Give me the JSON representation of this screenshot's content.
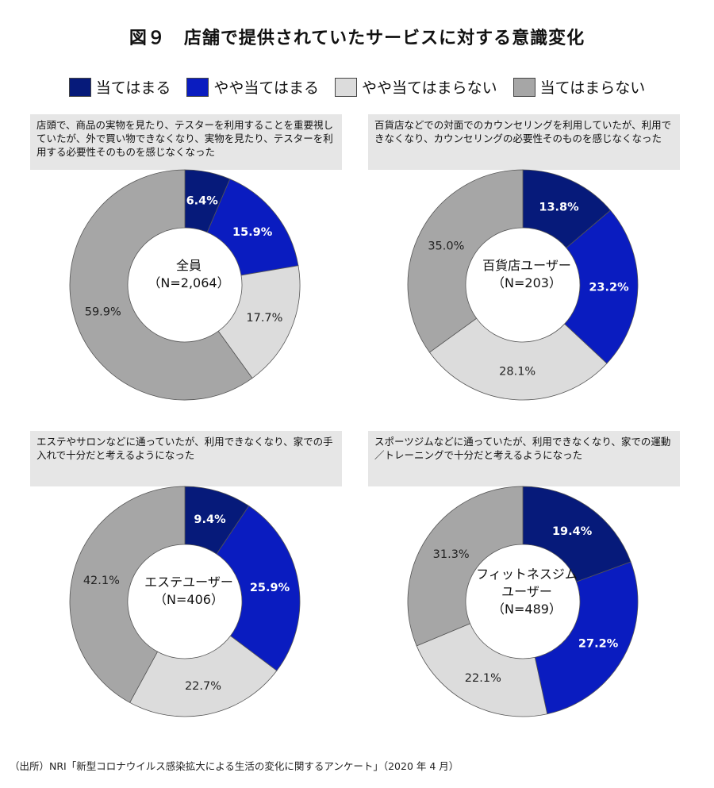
{
  "title": "図９　店舗で提供されていたサービスに対する意識変化",
  "legend": [
    {
      "label": "当てはまる",
      "color": "#061a7a"
    },
    {
      "label": "やや当てはまる",
      "color": "#0a1cc0"
    },
    {
      "label": "やや当てはまらない",
      "color": "#dcdcdc"
    },
    {
      "label": "当てはまらない",
      "color": "#a6a6a6"
    }
  ],
  "footer": "（出所）NRI「新型コロナウイルス感染拡大による生活の変化に関するアンケート」（2020 年 4 月）",
  "chart_data": [
    {
      "type": "pie",
      "title": "全員",
      "subtitle": "（N=2,064）",
      "description": "店頭で、商品の実物を見たり、テスターを利用することを重要視していたが、外で買い物できなくなり、実物を見たり、テスターを利用する必要性そのものを感じなくなった",
      "categories": [
        "当てはまる",
        "やや当てはまる",
        "やや当てはまらない",
        "当てはまらない"
      ],
      "values": [
        6.4,
        15.9,
        17.7,
        59.9
      ],
      "labels": [
        "6.4%",
        "15.9%",
        "17.7%",
        "59.9%"
      ]
    },
    {
      "type": "pie",
      "title": "百貨店ユーザー",
      "subtitle": "（N=203）",
      "description": "百貨店などでの対面でのカウンセリングを利用していたが、利用できなくなり、カウンセリングの必要性そのものを感じなくなった",
      "categories": [
        "当てはまる",
        "やや当てはまる",
        "やや当てはまらない",
        "当てはまらない"
      ],
      "values": [
        13.8,
        23.2,
        28.1,
        35.0
      ],
      "labels": [
        "13.8%",
        "23.2%",
        "28.1%",
        "35.0%"
      ]
    },
    {
      "type": "pie",
      "title": "エステユーザー",
      "subtitle": "（N=406）",
      "description": "エステやサロンなどに通っていたが、利用できなくなり、家での手入れで十分だと考えるようになった",
      "categories": [
        "当てはまる",
        "やや当てはまる",
        "やや当てはまらない",
        "当てはまらない"
      ],
      "values": [
        9.4,
        25.9,
        22.7,
        42.1
      ],
      "labels": [
        "9.4%",
        "25.9%",
        "22.7%",
        "42.1%"
      ]
    },
    {
      "type": "pie",
      "title": "フィットネスジム",
      "title2": "ユーザー",
      "subtitle": "（N=489）",
      "description": "スポーツジムなどに通っていたが、利用できなくなり、家での運動／トレーニングで十分だと考えるようになった",
      "categories": [
        "当てはまる",
        "やや当てはまる",
        "やや当てはまらない",
        "当てはまらない"
      ],
      "values": [
        19.4,
        27.2,
        22.1,
        31.3
      ],
      "labels": [
        "19.4%",
        "27.2%",
        "22.1%",
        "31.3%"
      ]
    }
  ]
}
